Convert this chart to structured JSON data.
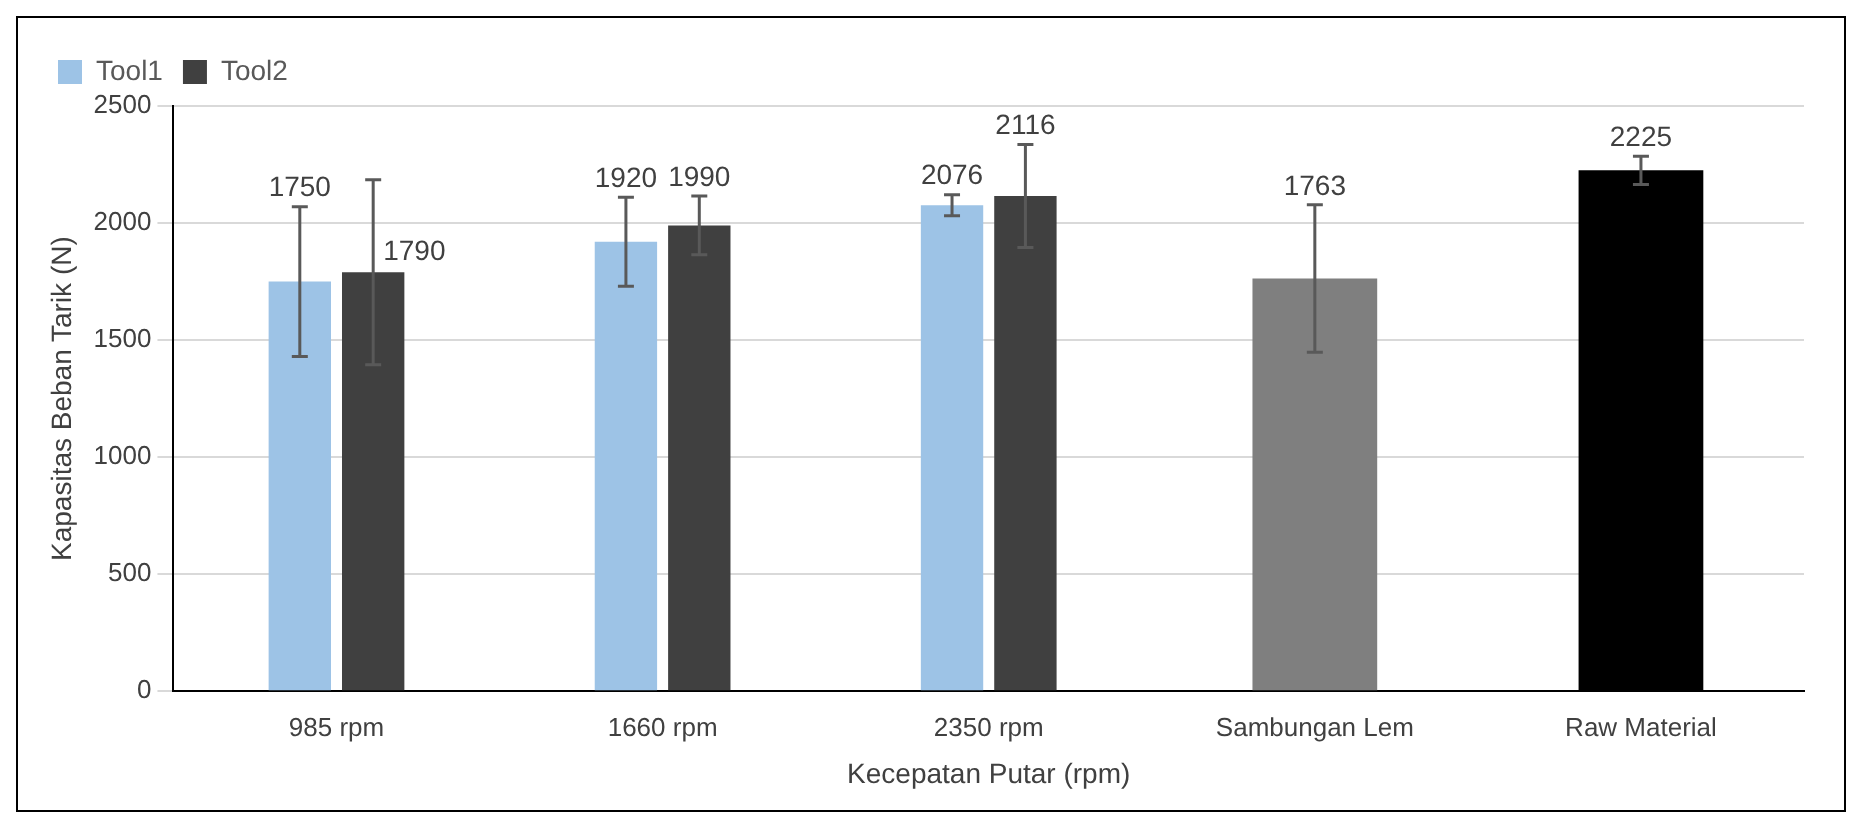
{
  "chart_data": {
    "type": "bar",
    "xlabel": "Kecepatan Putar (rpm)",
    "ylabel": "Kapasitas Beban Tarik (N)",
    "categories": [
      "985 rpm",
      "1660 rpm",
      "2350 rpm",
      "Sambungan Lem",
      "Raw Material"
    ],
    "series": [
      {
        "name": "Tool1",
        "color": "#9dc3e6",
        "values": [
          1750,
          1920,
          2076,
          null,
          null
        ],
        "errors": [
          320,
          190,
          45,
          null,
          null
        ]
      },
      {
        "name": "Tool2",
        "color": "#404040",
        "values": [
          1790,
          1990,
          2116,
          null,
          null
        ],
        "errors": [
          395,
          125,
          220,
          null,
          null
        ]
      },
      {
        "color": "#7f7f7f",
        "values": [
          null,
          null,
          null,
          1763,
          null
        ],
        "errors": [
          null,
          null,
          null,
          315,
          null
        ]
      },
      {
        "color": "#000000",
        "values": [
          null,
          null,
          null,
          null,
          2225
        ],
        "errors": [
          null,
          null,
          null,
          null,
          60
        ]
      }
    ],
    "ylim": [
      0,
      2500
    ],
    "yticks": [
      0,
      500,
      1000,
      1500,
      2000,
      2500
    ],
    "grid": "y",
    "legend": "top left",
    "data_labels": true
  }
}
